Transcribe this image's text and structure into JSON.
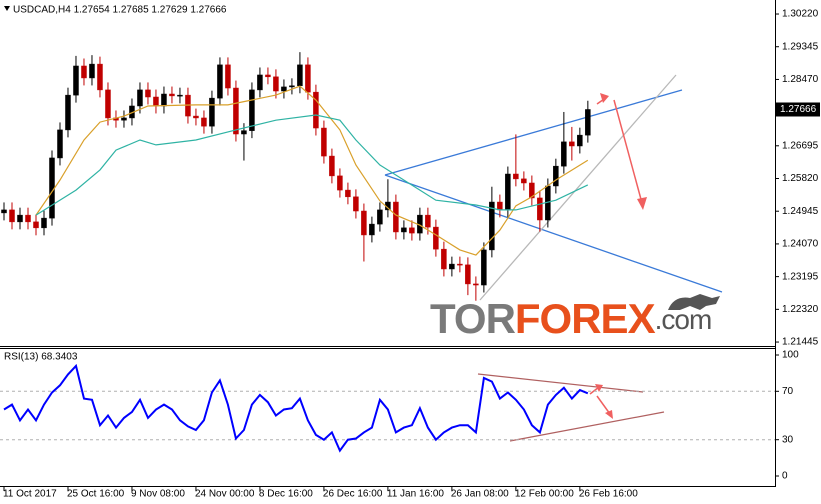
{
  "chart_data": [
    {
      "type": "candlestick",
      "title": "USDCAD,H4  1.27654 1.27685 1.27629 1.27666",
      "up_color": "#000000",
      "down_color": "#c00000",
      "xlim": [
        -0.5,
        96.4
      ],
      "ylim": [
        1.21366,
        1.30595
      ],
      "yticks": [
        {
          "value": 1.3022,
          "label": "1.30220"
        },
        1.29345,
        {
          "value": 1.2847,
          "label": "1.28470"
        },
        1.26695,
        {
          "value": 1.2582,
          "label": "1.25820"
        },
        1.24945,
        {
          "value": 1.2407,
          "label": "1.24070"
        },
        1.23195,
        {
          "value": 1.2232,
          "label": "1.22320"
        },
        1.21445
      ],
      "last_price": 1.27666,
      "open": [
        1.249,
        1.2498,
        1.2466,
        1.2484,
        1.2466,
        1.245,
        1.2476,
        1.2637,
        1.2712,
        1.2805,
        1.2883,
        1.2851,
        1.2888,
        1.2819,
        1.2744,
        1.2738,
        1.2744,
        1.2776,
        1.2819,
        1.28,
        1.2776,
        1.2808,
        1.2803,
        1.2805,
        1.2749,
        1.2744,
        1.2722,
        1.2797,
        1.2886,
        1.2824,
        1.2701,
        1.271,
        1.2819,
        1.2859,
        1.2854,
        1.2816,
        1.2827,
        1.283,
        1.2886,
        1.2813,
        1.2717,
        1.2642,
        1.2589,
        1.2551,
        1.2533,
        1.2495,
        1.2431,
        1.246,
        1.2498,
        1.2519,
        1.2439,
        1.245,
        1.2436,
        1.2484,
        1.2452,
        1.2393,
        1.234,
        1.2353,
        1.2351,
        1.23,
        1.2297,
        1.2391,
        1.2519,
        1.2498,
        1.2594,
        1.2581,
        1.257,
        1.253,
        1.2471,
        1.2562,
        1.2615,
        1.268,
        1.2669,
        1.2698
      ],
      "high": [
        1.2518,
        1.2518,
        1.2504,
        1.2504,
        1.2486,
        1.2496,
        1.2657,
        1.2732,
        1.2825,
        1.291,
        1.2903,
        1.2912,
        1.2908,
        1.2839,
        1.2764,
        1.2764,
        1.2796,
        1.2839,
        1.2839,
        1.282,
        1.2828,
        1.2828,
        1.2825,
        1.2825,
        1.2769,
        1.2764,
        1.2817,
        1.2906,
        1.2906,
        1.2844,
        1.273,
        1.2839,
        1.2879,
        1.2879,
        1.2874,
        1.2847,
        1.285,
        1.292,
        1.2906,
        1.2833,
        1.2737,
        1.2662,
        1.2609,
        1.2571,
        1.2553,
        1.2515,
        1.248,
        1.2518,
        1.258,
        1.2539,
        1.247,
        1.247,
        1.2504,
        1.2504,
        1.2472,
        1.2413,
        1.2373,
        1.2373,
        1.2371,
        1.232,
        1.2411,
        1.256,
        1.2539,
        1.2614,
        1.27,
        1.2601,
        1.259,
        1.255,
        1.2582,
        1.2635,
        1.276,
        1.272,
        1.2718,
        1.279
      ],
      "low": [
        1.247,
        1.2446,
        1.2446,
        1.2446,
        1.243,
        1.243,
        1.2456,
        1.2617,
        1.2692,
        1.2785,
        1.2831,
        1.2831,
        1.2799,
        1.2724,
        1.2718,
        1.2718,
        1.2724,
        1.2756,
        1.278,
        1.2756,
        1.2756,
        1.2783,
        1.2783,
        1.2729,
        1.2724,
        1.2702,
        1.2702,
        1.2777,
        1.2804,
        1.2681,
        1.263,
        1.269,
        1.2799,
        1.2834,
        1.2796,
        1.2796,
        1.2807,
        1.281,
        1.2793,
        1.2697,
        1.2622,
        1.2569,
        1.2531,
        1.2513,
        1.2475,
        1.236,
        1.2411,
        1.244,
        1.2478,
        1.2419,
        1.2419,
        1.2416,
        1.2416,
        1.2432,
        1.2373,
        1.232,
        1.232,
        1.2331,
        1.227,
        1.2255,
        1.2277,
        1.2371,
        1.2478,
        1.2478,
        1.2561,
        1.255,
        1.251,
        1.244,
        1.2451,
        1.2542,
        1.2595,
        1.263,
        1.2649,
        1.2678
      ],
      "close": [
        1.2498,
        1.2466,
        1.2484,
        1.2466,
        1.245,
        1.2476,
        1.2637,
        1.2712,
        1.2805,
        1.2883,
        1.2851,
        1.2888,
        1.2819,
        1.2744,
        1.2738,
        1.2744,
        1.2776,
        1.2819,
        1.28,
        1.2776,
        1.2808,
        1.2803,
        1.2805,
        1.2749,
        1.2744,
        1.2722,
        1.2797,
        1.2886,
        1.2824,
        1.2701,
        1.271,
        1.2819,
        1.2859,
        1.2854,
        1.2816,
        1.2827,
        1.283,
        1.2886,
        1.2813,
        1.2717,
        1.2642,
        1.2589,
        1.2551,
        1.2533,
        1.2495,
        1.2431,
        1.246,
        1.2498,
        1.2519,
        1.2439,
        1.245,
        1.2436,
        1.2484,
        1.2452,
        1.2393,
        1.234,
        1.2353,
        1.2351,
        1.23,
        1.2297,
        1.2391,
        1.2519,
        1.2498,
        1.2594,
        1.2581,
        1.257,
        1.253,
        1.2471,
        1.2562,
        1.2615,
        1.268,
        1.2669,
        1.2698,
        1.27666
      ],
      "overlays": [
        {
          "color": "#d9a02a",
          "x": [
            4,
            7,
            10,
            12,
            15,
            18,
            24,
            28,
            31,
            34,
            37,
            39,
            42,
            44,
            47,
            49,
            52,
            54,
            57,
            59,
            62,
            64,
            66,
            69,
            73
          ],
          "values": [
            1.2484,
            1.2578,
            1.2685,
            1.2733,
            1.2749,
            1.2776,
            1.2779,
            1.2779,
            1.2792,
            1.2805,
            1.2829,
            1.2792,
            1.2712,
            1.2618,
            1.2522,
            1.2484,
            1.2457,
            1.2431,
            1.2391,
            1.2377,
            1.2444,
            1.2509,
            1.2533,
            1.2578,
            1.2631
          ]
        },
        {
          "color": "#2fb3a4",
          "x": [
            4,
            9,
            12,
            14,
            17,
            19,
            24,
            29,
            34,
            39,
            42,
            44,
            47,
            52,
            54,
            59,
            62,
            64,
            69,
            73
          ],
          "values": [
            1.2484,
            1.2551,
            1.2605,
            1.2658,
            1.2685,
            1.2672,
            1.2685,
            1.2712,
            1.2738,
            1.2752,
            1.2738,
            1.2685,
            1.2618,
            1.2551,
            1.2524,
            1.2511,
            1.2498,
            1.2498,
            1.2524,
            1.2565
          ]
        }
      ]
    },
    {
      "type": "line",
      "label": "RSI(13) 68.3403",
      "color": "#0000ff",
      "xlim": [
        -0.5,
        96.4
      ],
      "ylim": [
        -8.26,
        104.96
      ],
      "yticks": [
        100,
        70,
        30,
        0
      ],
      "levels": [
        70,
        30
      ],
      "xticks": [
        {
          "value": 0,
          "label": "11 Oct 2017"
        },
        {
          "value": 8,
          "label": "25 Oct 16:00"
        },
        {
          "value": 16,
          "label": "9 Nov 08:00"
        },
        {
          "value": 24,
          "label": "24 Nov 00:00"
        },
        {
          "value": 32,
          "label": "8 Dec 16:00"
        },
        {
          "value": 40,
          "label": "26 Dec 16:00"
        },
        {
          "value": 48,
          "label": "11 Jan 16:00"
        },
        {
          "value": 56,
          "label": "26 Jan 08:00"
        },
        {
          "value": 64,
          "label": "12 Feb 00:00"
        },
        {
          "value": 72,
          "label": "26 Feb 16:00"
        }
      ],
      "values": [
        55,
        59,
        46,
        55,
        46,
        59,
        69,
        75,
        84,
        91,
        64,
        63,
        42,
        50,
        40,
        48,
        53,
        63,
        48,
        55,
        59,
        55,
        46,
        41,
        38,
        46,
        69,
        79,
        59,
        31,
        38,
        59,
        67,
        61,
        50,
        55,
        56,
        64,
        46,
        34,
        30,
        36,
        21,
        30,
        31,
        36,
        40,
        63,
        55,
        36,
        40,
        42,
        56,
        40,
        30,
        36,
        40,
        42,
        42,
        36,
        81,
        78,
        64,
        69,
        63,
        55,
        42,
        36,
        59,
        67,
        73,
        64,
        71,
        68.3403
      ]
    }
  ],
  "watermark": {
    "parts": [
      "TOR",
      "FOREX",
      ".com"
    ]
  }
}
